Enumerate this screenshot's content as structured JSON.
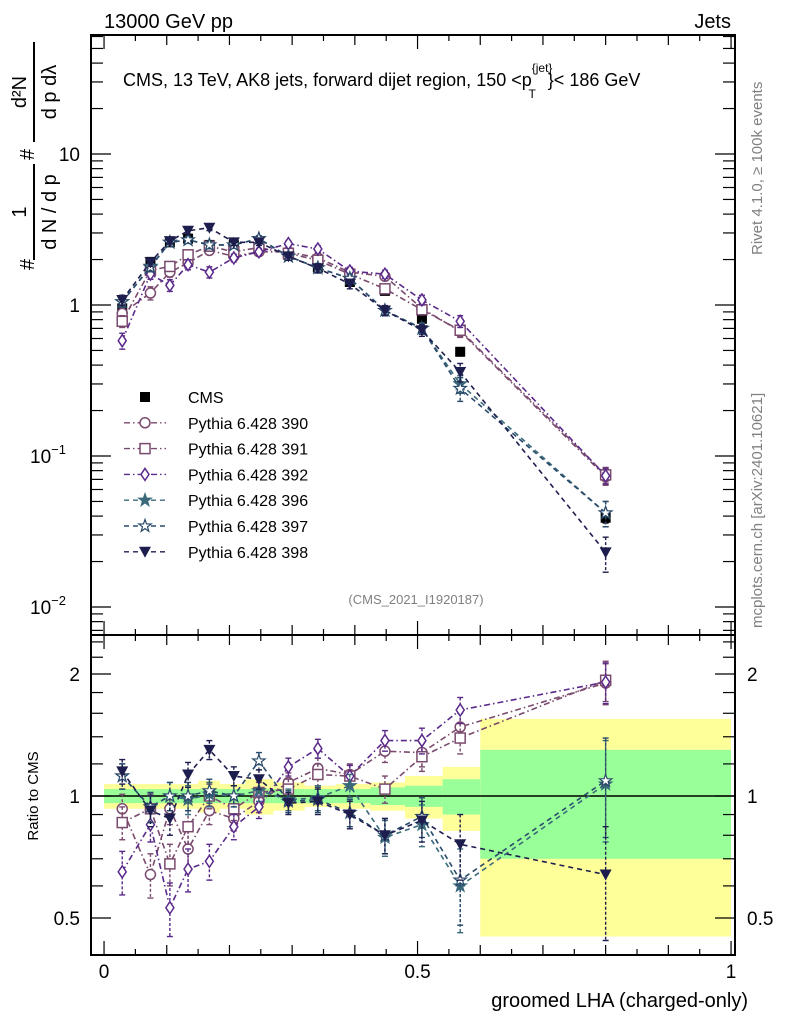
{
  "header": {
    "left": "13000 GeV pp",
    "right": "Jets"
  },
  "side_labels": {
    "rivet": "Rivet 4.1.0, ≥ 100k events",
    "mcplots": "mcplots.cern.ch [arXiv:2401.10621]"
  },
  "chart_data": [
    {
      "type": "scatter",
      "panel": "main",
      "title": "CMS, 13 TeV, AK8 jets, forward dijet region, 150 < p_T^{jet} < 186 GeV",
      "title_main": "CMS, 13 TeV, AK8 jets, forward dijet region, 150 <p",
      "title_sup": "{jet}",
      "title_sub": "T",
      "title_tail": "}< 186 GeV",
      "ylabel": "1/N dN/dp_T  d²N/dp_T dλ",
      "yscale": "log",
      "ylim": [
        0.0063,
        62
      ],
      "xlim": [
        -0.02,
        1.005
      ],
      "ytick_labels": [
        {
          "value": 10,
          "label": "10"
        },
        {
          "value": 1,
          "label": "1"
        },
        {
          "value": 0.1,
          "label": "10",
          "exp": "−1"
        },
        {
          "value": 0.01,
          "label": "10",
          "exp": "−2"
        }
      ],
      "watermark": "(CMS_2021_I1920187)",
      "x": [
        0.029,
        0.074,
        0.105,
        0.134,
        0.168,
        0.207,
        0.247,
        0.294,
        0.341,
        0.392,
        0.448,
        0.507,
        0.568,
        0.8
      ],
      "series": [
        {
          "name": "CMS",
          "marker": "square-filled",
          "color": "#000000",
          "line": "none",
          "values": [
            0.95,
            1.93,
            2.6,
            2.75,
            2.5,
            2.5,
            2.4,
            2.15,
            1.77,
            1.42,
            1.24,
            0.81,
            0.49,
            0.039
          ],
          "errors": [
            0.06,
            0.1,
            0.1,
            0.1,
            0.1,
            0.1,
            0.1,
            0.1,
            0.08,
            0.06,
            0.06,
            0.04,
            0.03,
            0.003
          ]
        },
        {
          "name": "Pythia 6.428 390",
          "marker": "circle-open",
          "color": "#7a4a6e",
          "line": "dashdot",
          "values": [
            0.88,
            1.2,
            1.65,
            1.9,
            2.3,
            2.1,
            2.25,
            2.25,
            2.05,
            1.65,
            1.55,
            0.95,
            0.67,
            0.073
          ],
          "errors": [
            0.08,
            0.12,
            0.12,
            0.12,
            0.14,
            0.12,
            0.12,
            0.12,
            0.12,
            0.1,
            0.1,
            0.07,
            0.06,
            0.009
          ]
        },
        {
          "name": "Pythia 6.428 391",
          "marker": "square-open",
          "color": "#7a4a6e",
          "line": "dashdot",
          "values": [
            0.78,
            1.7,
            1.8,
            2.15,
            2.45,
            2.25,
            2.4,
            2.2,
            1.98,
            1.6,
            1.28,
            0.93,
            0.68,
            0.075
          ],
          "errors": [
            0.07,
            0.12,
            0.12,
            0.14,
            0.14,
            0.12,
            0.12,
            0.12,
            0.12,
            0.1,
            0.08,
            0.07,
            0.06,
            0.009
          ]
        },
        {
          "name": "Pythia 6.428 392",
          "marker": "diamond-open",
          "color": "#5a2a8a",
          "line": "dashdot",
          "values": [
            0.58,
            1.6,
            1.35,
            1.85,
            1.65,
            2.05,
            2.25,
            2.55,
            2.35,
            1.68,
            1.6,
            1.08,
            0.78,
            0.074
          ],
          "errors": [
            0.07,
            0.12,
            0.12,
            0.14,
            0.14,
            0.12,
            0.12,
            0.12,
            0.12,
            0.1,
            0.1,
            0.08,
            0.07,
            0.009
          ]
        },
        {
          "name": "Pythia 6.428 396",
          "marker": "star-filled",
          "color": "#3a6a7a",
          "line": "dashed",
          "values": [
            1.05,
            1.8,
            2.6,
            2.7,
            2.5,
            2.5,
            2.75,
            2.1,
            1.76,
            1.5,
            0.92,
            0.7,
            0.3,
            0.042
          ],
          "errors": [
            0.08,
            0.12,
            0.12,
            0.14,
            0.14,
            0.12,
            0.12,
            0.12,
            0.12,
            0.1,
            0.07,
            0.06,
            0.04,
            0.008
          ]
        },
        {
          "name": "Pythia 6.428 397",
          "marker": "star-open",
          "color": "#2a4a6a",
          "line": "dashed",
          "values": [
            1.05,
            1.78,
            2.6,
            2.7,
            2.5,
            2.5,
            2.75,
            2.1,
            1.76,
            1.5,
            0.92,
            0.7,
            0.28,
            0.042
          ],
          "errors": [
            0.08,
            0.12,
            0.12,
            0.14,
            0.14,
            0.12,
            0.12,
            0.12,
            0.12,
            0.1,
            0.07,
            0.06,
            0.05,
            0.008
          ]
        },
        {
          "name": "Pythia 6.428 398",
          "marker": "triangle-down-filled",
          "color": "#1e1e4e",
          "line": "dashed",
          "values": [
            1.08,
            1.92,
            2.65,
            3.1,
            3.25,
            2.6,
            2.6,
            2.1,
            1.75,
            1.38,
            0.92,
            0.68,
            0.36,
            0.023
          ],
          "errors": [
            0.08,
            0.12,
            0.12,
            0.14,
            0.14,
            0.12,
            0.12,
            0.12,
            0.12,
            0.1,
            0.07,
            0.06,
            0.05,
            0.006
          ]
        }
      ],
      "legend": {
        "position": "center-left",
        "entries": [
          "CMS",
          "Pythia 6.428 390",
          "Pythia 6.428 391",
          "Pythia 6.428 392",
          "Pythia 6.428 396",
          "Pythia 6.428 397",
          "Pythia 6.428 398"
        ]
      }
    },
    {
      "type": "scatter",
      "panel": "ratio",
      "ylabel": "Ratio to CMS",
      "xlabel": "groomed LHA (charged-only)",
      "yscale": "log",
      "ylim": [
        0.4,
        2.45
      ],
      "xlim": [
        -0.02,
        1.005
      ],
      "ytick_labels": [
        {
          "value": 2,
          "label": "2"
        },
        {
          "value": 1,
          "label": "1"
        },
        {
          "value": 0.5,
          "label": "0.5"
        }
      ],
      "xtick_labels": [
        {
          "value": 0,
          "label": "0"
        },
        {
          "value": 0.5,
          "label": "0.5"
        },
        {
          "value": 1,
          "label": "1"
        }
      ],
      "bin_edges": [
        0.0,
        0.055,
        0.09,
        0.12,
        0.15,
        0.185,
        0.225,
        0.27,
        0.32,
        0.37,
        0.425,
        0.48,
        0.54,
        0.6,
        1.0
      ],
      "band_inner": [
        0.04,
        0.04,
        0.04,
        0.04,
        0.04,
        0.04,
        0.04,
        0.04,
        0.04,
        0.04,
        0.05,
        0.06,
        0.1,
        0.3
      ],
      "band_outer": [
        0.07,
        0.07,
        0.07,
        0.07,
        0.09,
        0.07,
        0.1,
        0.08,
        0.06,
        0.07,
        0.08,
        0.12,
        0.18,
        0.55
      ],
      "x": [
        0.029,
        0.074,
        0.105,
        0.134,
        0.168,
        0.207,
        0.247,
        0.294,
        0.341,
        0.392,
        0.448,
        0.507,
        0.568,
        0.8
      ],
      "series": [
        {
          "name": "Pythia 6.428 390",
          "marker": "circle-open",
          "color": "#7a4a6e",
          "line": "dashdot",
          "values": [
            0.93,
            0.64,
            0.93,
            0.74,
            0.92,
            0.88,
            0.97,
            1.08,
            1.17,
            1.13,
            1.29,
            1.28,
            1.48,
            1.9
          ],
          "errors": [
            0.08,
            0.08,
            0.08,
            0.08,
            0.07,
            0.06,
            0.06,
            0.06,
            0.07,
            0.07,
            0.08,
            0.1,
            0.12,
            0.22
          ]
        },
        {
          "name": "Pythia 6.428 391",
          "marker": "square-open",
          "color": "#7a4a6e",
          "line": "dashdot",
          "values": [
            0.86,
            0.93,
            0.68,
            0.84,
            1.0,
            0.93,
            1.02,
            1.04,
            1.13,
            1.12,
            1.04,
            1.25,
            1.39,
            1.93
          ],
          "errors": [
            0.08,
            0.08,
            0.08,
            0.08,
            0.07,
            0.06,
            0.06,
            0.06,
            0.07,
            0.07,
            0.08,
            0.1,
            0.12,
            0.22
          ]
        },
        {
          "name": "Pythia 6.428 392",
          "marker": "diamond-open",
          "color": "#5a2a8a",
          "line": "dashdot",
          "values": [
            0.65,
            0.85,
            0.53,
            0.66,
            0.69,
            0.84,
            0.94,
            1.18,
            1.31,
            1.12,
            1.37,
            1.37,
            1.63,
            1.91
          ],
          "errors": [
            0.08,
            0.08,
            0.08,
            0.08,
            0.07,
            0.06,
            0.06,
            0.06,
            0.07,
            0.07,
            0.08,
            0.1,
            0.12,
            0.22
          ]
        },
        {
          "name": "Pythia 6.428 396",
          "marker": "star-filled",
          "color": "#3a6a7a",
          "line": "dashed",
          "values": [
            1.12,
            0.94,
            1.0,
            0.98,
            1.01,
            1.0,
            1.03,
            0.98,
            0.99,
            1.06,
            0.79,
            0.85,
            0.6,
            1.07
          ],
          "errors": [
            0.08,
            0.08,
            0.08,
            0.08,
            0.07,
            0.06,
            0.06,
            0.06,
            0.07,
            0.07,
            0.08,
            0.1,
            0.14,
            0.3
          ]
        },
        {
          "name": "Pythia 6.428 397",
          "marker": "star-open",
          "color": "#2a4a6a",
          "line": "dashed",
          "values": [
            1.12,
            0.94,
            1.0,
            1.0,
            1.03,
            1.0,
            1.22,
            0.97,
            0.98,
            0.91,
            0.8,
            0.89,
            0.62,
            1.09
          ],
          "errors": [
            0.08,
            0.08,
            0.08,
            0.08,
            0.07,
            0.06,
            0.06,
            0.06,
            0.07,
            0.07,
            0.08,
            0.1,
            0.14,
            0.3
          ]
        },
        {
          "name": "Pythia 6.428 398",
          "marker": "triangle-down-filled",
          "color": "#1e1e4e",
          "line": "dashed",
          "values": [
            1.15,
            0.92,
            0.88,
            1.13,
            1.3,
            1.12,
            1.1,
            0.96,
            0.97,
            0.9,
            0.8,
            0.87,
            0.76,
            0.64
          ],
          "errors": [
            0.08,
            0.08,
            0.08,
            0.08,
            0.07,
            0.06,
            0.06,
            0.06,
            0.07,
            0.07,
            0.08,
            0.1,
            0.14,
            0.2
          ]
        }
      ]
    }
  ]
}
